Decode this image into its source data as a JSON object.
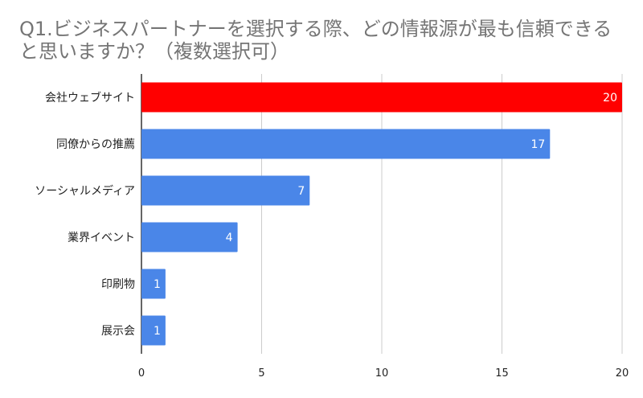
{
  "chart_data": {
    "type": "bar",
    "orientation": "horizontal",
    "title": "Q1.ビジネスパートナーを選択する際、どの情報源が最も信頼できると思いますか？（複数選択可）",
    "categories": [
      "会社ウェブサイト",
      "同僚からの推薦",
      "ソーシャルメディア",
      "業界イベント",
      "印刷物",
      "展示会"
    ],
    "values": [
      20,
      17,
      7,
      4,
      1,
      1
    ],
    "colors": [
      "#ff0000",
      "#4a86e8",
      "#4a86e8",
      "#4a86e8",
      "#4a86e8",
      "#4a86e8"
    ],
    "xlim": [
      0,
      20
    ],
    "xticks": [
      0,
      5,
      10,
      15,
      20
    ],
    "xlabel": "",
    "ylabel": "",
    "grid": true,
    "data_labels": true
  }
}
